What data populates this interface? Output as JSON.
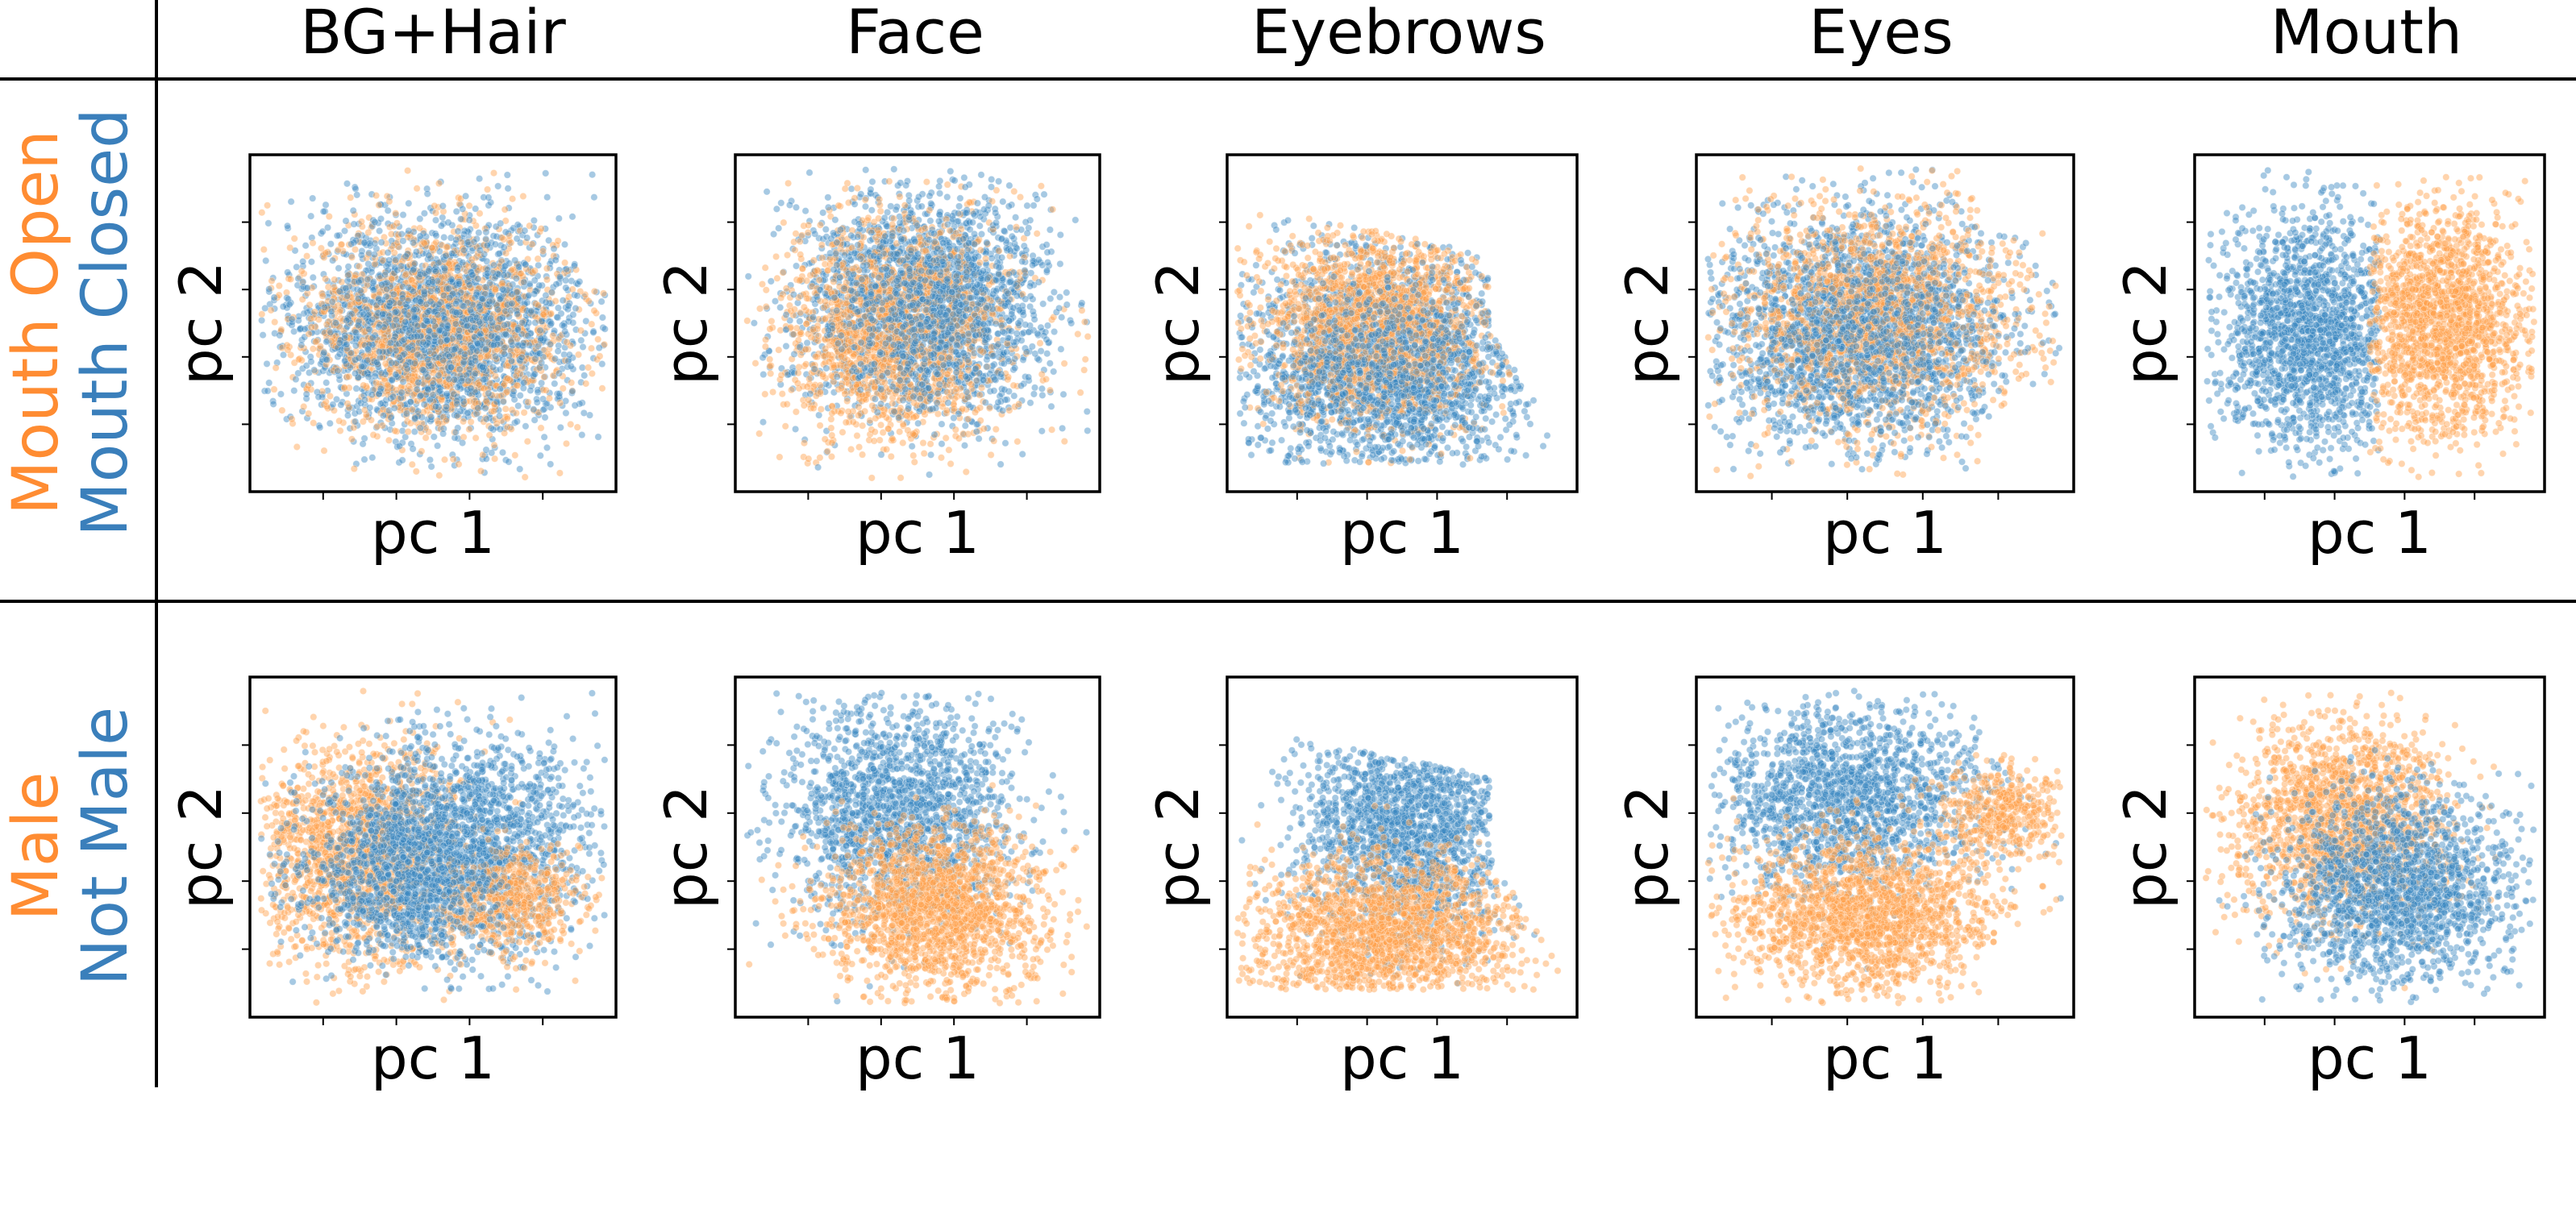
{
  "columns": [
    "BG+Hair",
    "Face",
    "Eyebrows",
    "Eyes",
    "Mouth"
  ],
  "rows": [
    {
      "label_a": "Mouth Open",
      "label_b": "Mouth Closed"
    },
    {
      "label_a": "Male",
      "label_b": "Not Male"
    }
  ],
  "colors": {
    "series_a": "#ff9f4a",
    "series_b": "#3a87c0",
    "series_a_edge": "#f5a662",
    "series_b_edge": "#5e9bca"
  },
  "chart_data": [
    {
      "type": "scatter",
      "row": 0,
      "column": "BG+Hair",
      "xlabel": "pc 1",
      "ylabel": "pc 2",
      "series": [
        {
          "name": "Mouth Open",
          "shape": "overlapping ellipse, centered"
        },
        {
          "name": "Mouth Closed",
          "shape": "overlapping ellipse, centered"
        }
      ]
    },
    {
      "type": "scatter",
      "row": 0,
      "column": "Face",
      "xlabel": "pc 1",
      "ylabel": "pc 2",
      "series": [
        {
          "name": "Mouth Open",
          "shape": "overlapping round cloud"
        },
        {
          "name": "Mouth Closed",
          "shape": "overlapping round cloud"
        }
      ]
    },
    {
      "type": "scatter",
      "row": 0,
      "column": "Eyebrows",
      "xlabel": "pc 1",
      "ylabel": "pc 2",
      "series": [
        {
          "name": "Mouth Open",
          "shape": "overlapping triangular cloud"
        },
        {
          "name": "Mouth Closed",
          "shape": "overlapping triangular cloud"
        }
      ]
    },
    {
      "type": "scatter",
      "row": 0,
      "column": "Eyes",
      "xlabel": "pc 1",
      "ylabel": "pc 2",
      "series": [
        {
          "name": "Mouth Open",
          "shape": "overlapping cloud with right tail"
        },
        {
          "name": "Mouth Closed",
          "shape": "overlapping cloud with right tail"
        }
      ]
    },
    {
      "type": "scatter",
      "row": 0,
      "column": "Mouth",
      "xlabel": "pc 1",
      "ylabel": "pc 2",
      "series": [
        {
          "name": "Mouth Open",
          "shape": "right half"
        },
        {
          "name": "Mouth Closed",
          "shape": "left half"
        }
      ]
    },
    {
      "type": "scatter",
      "row": 1,
      "column": "BG+Hair",
      "xlabel": "pc 1",
      "ylabel": "pc 2",
      "series": [
        {
          "name": "Male",
          "shape": "left and lower-right"
        },
        {
          "name": "Not Male",
          "shape": "right and center"
        }
      ]
    },
    {
      "type": "scatter",
      "row": 1,
      "column": "Face",
      "xlabel": "pc 1",
      "ylabel": "pc 2",
      "series": [
        {
          "name": "Male",
          "shape": "lower half"
        },
        {
          "name": "Not Male",
          "shape": "upper half"
        }
      ]
    },
    {
      "type": "scatter",
      "row": 1,
      "column": "Eyebrows",
      "xlabel": "pc 1",
      "ylabel": "pc 2",
      "series": [
        {
          "name": "Male",
          "shape": "lower part"
        },
        {
          "name": "Not Male",
          "shape": "upper part"
        }
      ]
    },
    {
      "type": "scatter",
      "row": 1,
      "column": "Eyes",
      "xlabel": "pc 1",
      "ylabel": "pc 2",
      "series": [
        {
          "name": "Male",
          "shape": "lower part and right tail"
        },
        {
          "name": "Not Male",
          "shape": "upper part"
        }
      ]
    },
    {
      "type": "scatter",
      "row": 1,
      "column": "Mouth",
      "xlabel": "pc 1",
      "ylabel": "pc 2",
      "series": [
        {
          "name": "Male",
          "shape": "upper-left"
        },
        {
          "name": "Not Male",
          "shape": "lower-right"
        }
      ]
    }
  ]
}
